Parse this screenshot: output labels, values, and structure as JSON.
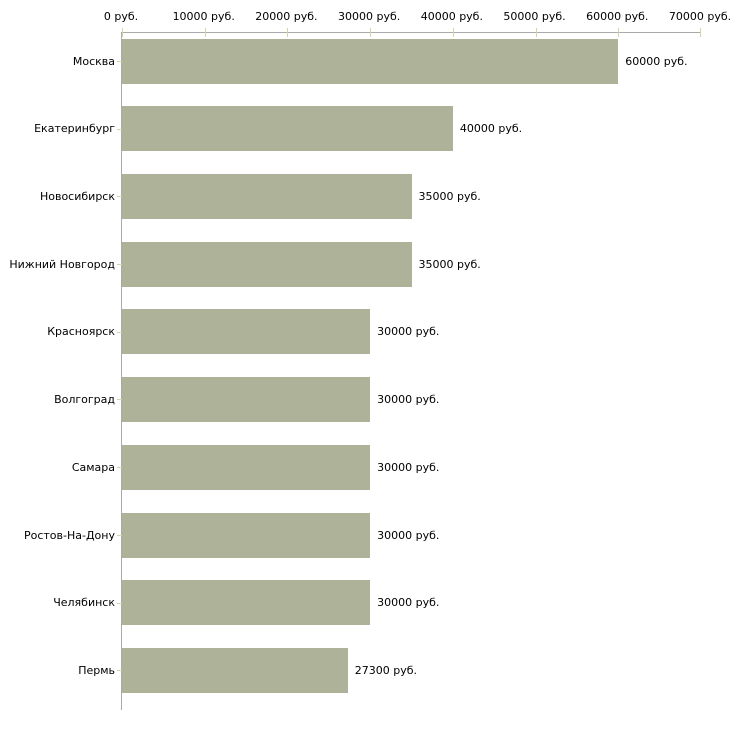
{
  "chart_data": {
    "type": "bar",
    "orientation": "horizontal",
    "title": "",
    "xlabel": "",
    "ylabel": "",
    "unit": "руб.",
    "categories": [
      "Москва",
      "Екатеринбург",
      "Новосибирск",
      "Нижний Новгород",
      "Красноярск",
      "Волгоград",
      "Самара",
      "Ростов-На-Дону",
      "Челябинск",
      "Пермь"
    ],
    "values": [
      60000,
      40000,
      35000,
      35000,
      30000,
      30000,
      30000,
      30000,
      30000,
      27300
    ],
    "value_labels": [
      "60000 руб.",
      "40000 руб.",
      "35000 руб.",
      "35000 руб.",
      "30000 руб.",
      "30000 руб.",
      "30000 руб.",
      "30000 руб.",
      "30000 руб.",
      "27300 руб."
    ],
    "x_tick_labels": [
      "0 руб.",
      "10000 руб.",
      "20000 руб.",
      "30000 руб.",
      "40000 руб.",
      "50000 руб.",
      "60000 руб.",
      "70000 руб."
    ],
    "x_tick_values": [
      0,
      10000,
      20000,
      30000,
      40000,
      50000,
      60000,
      70000
    ],
    "xlim": [
      0,
      70000
    ],
    "grid": false,
    "legend": "none",
    "colors": {
      "bar": "#adb299",
      "tick": "#d4d4a8",
      "axis": "#aaaaaa",
      "text": "#000000",
      "background": "#ffffff"
    }
  }
}
